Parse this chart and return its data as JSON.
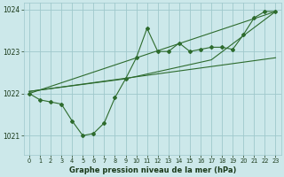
{
  "title": "Graphe pression niveau de la mer (hPa)",
  "bg_color": "#cce8ea",
  "grid_color": "#9fc8cc",
  "line_color": "#2d6b2d",
  "xlim": [
    -0.5,
    23.5
  ],
  "ylim": [
    1020.55,
    1024.15
  ],
  "yticks": [
    1021,
    1022,
    1023,
    1024
  ],
  "xticks": [
    0,
    1,
    2,
    3,
    4,
    5,
    6,
    7,
    8,
    9,
    10,
    11,
    12,
    13,
    14,
    15,
    16,
    17,
    18,
    19,
    20,
    21,
    22,
    23
  ],
  "main_data_x": [
    0,
    1,
    2,
    3,
    4,
    5,
    6,
    7,
    8,
    9,
    10,
    11,
    12,
    13,
    14,
    15,
    16,
    17,
    18,
    19,
    20,
    21,
    22,
    23
  ],
  "main_data_y": [
    1022.0,
    1021.85,
    1021.8,
    1021.75,
    1021.35,
    1021.0,
    1021.05,
    1021.3,
    1021.9,
    1022.35,
    1022.85,
    1023.55,
    1023.0,
    1023.0,
    1023.2,
    1023.0,
    1023.05,
    1023.1,
    1023.1,
    1023.05,
    1023.4,
    1023.8,
    1023.95,
    1023.95
  ],
  "trend1_x": [
    0,
    23
  ],
  "trend1_y": [
    1022.0,
    1023.95
  ],
  "trend2_x": [
    0,
    23
  ],
  "trend2_y": [
    1022.05,
    1022.85
  ],
  "trend3_x": [
    0,
    9,
    17,
    23
  ],
  "trend3_y": [
    1022.05,
    1022.35,
    1022.8,
    1023.95
  ]
}
